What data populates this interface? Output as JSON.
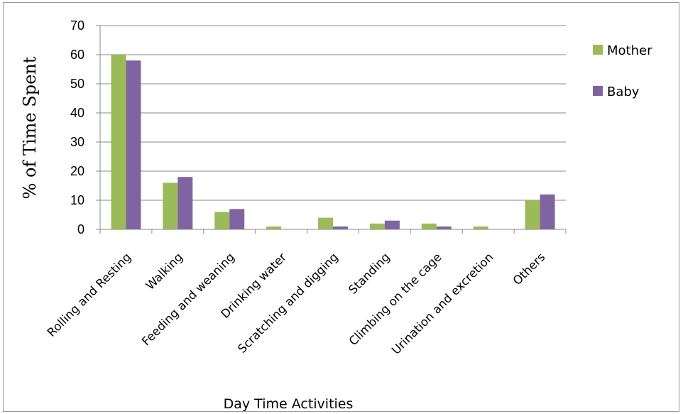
{
  "chart_data": {
    "type": "bar",
    "title": "",
    "xlabel": "Day Time Activities",
    "ylabel": "% of Time Spent",
    "ylim": [
      0,
      70
    ],
    "yticks": [
      0,
      10,
      20,
      30,
      40,
      50,
      60,
      70
    ],
    "grid": true,
    "legend_position": "right",
    "categories": [
      "Rolling and Resting",
      "Walking",
      "Feeding and weaning",
      "Drinking water",
      "Scratching and digging",
      "Standing",
      "Climbing on the cage",
      "Urination and excretion",
      "Others"
    ],
    "series": [
      {
        "name": "Mother",
        "color": "#9BBB59",
        "values": [
          60,
          16,
          6,
          1,
          4,
          2,
          2,
          1,
          10
        ]
      },
      {
        "name": "Baby",
        "color": "#8064A2",
        "values": [
          58,
          18,
          7,
          0,
          1,
          3,
          1,
          0,
          12
        ]
      }
    ]
  }
}
